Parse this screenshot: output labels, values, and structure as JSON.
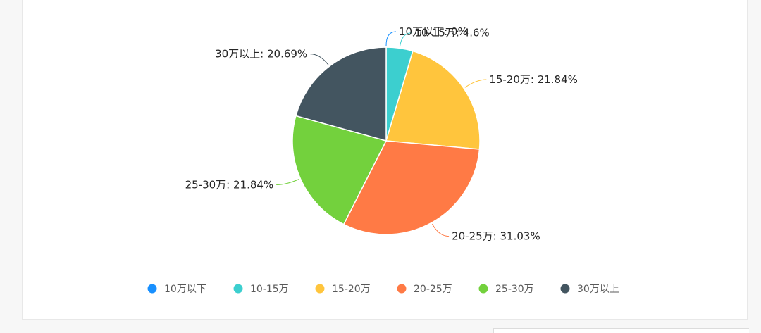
{
  "chart_data": {
    "type": "pie",
    "title": "",
    "categories": [
      "10万以下",
      "10-15万",
      "15-20万",
      "20-25万",
      "25-30万",
      "30万以上"
    ],
    "values": [
      0,
      4.6,
      21.84,
      31.03,
      21.84,
      20.69
    ],
    "labels": [
      "10万以下: 0%",
      "10-15万: 4.6%",
      "15-20万: 21.84%",
      "20-25万: 31.03%",
      "25-30万: 21.84%",
      "30万以上: 20.69%"
    ],
    "colors": [
      "#1890ff",
      "#3ccfcf",
      "#ffc53d",
      "#ff7a45",
      "#73d13d",
      "#435560"
    ],
    "legend": "bottom",
    "unit": "%"
  }
}
